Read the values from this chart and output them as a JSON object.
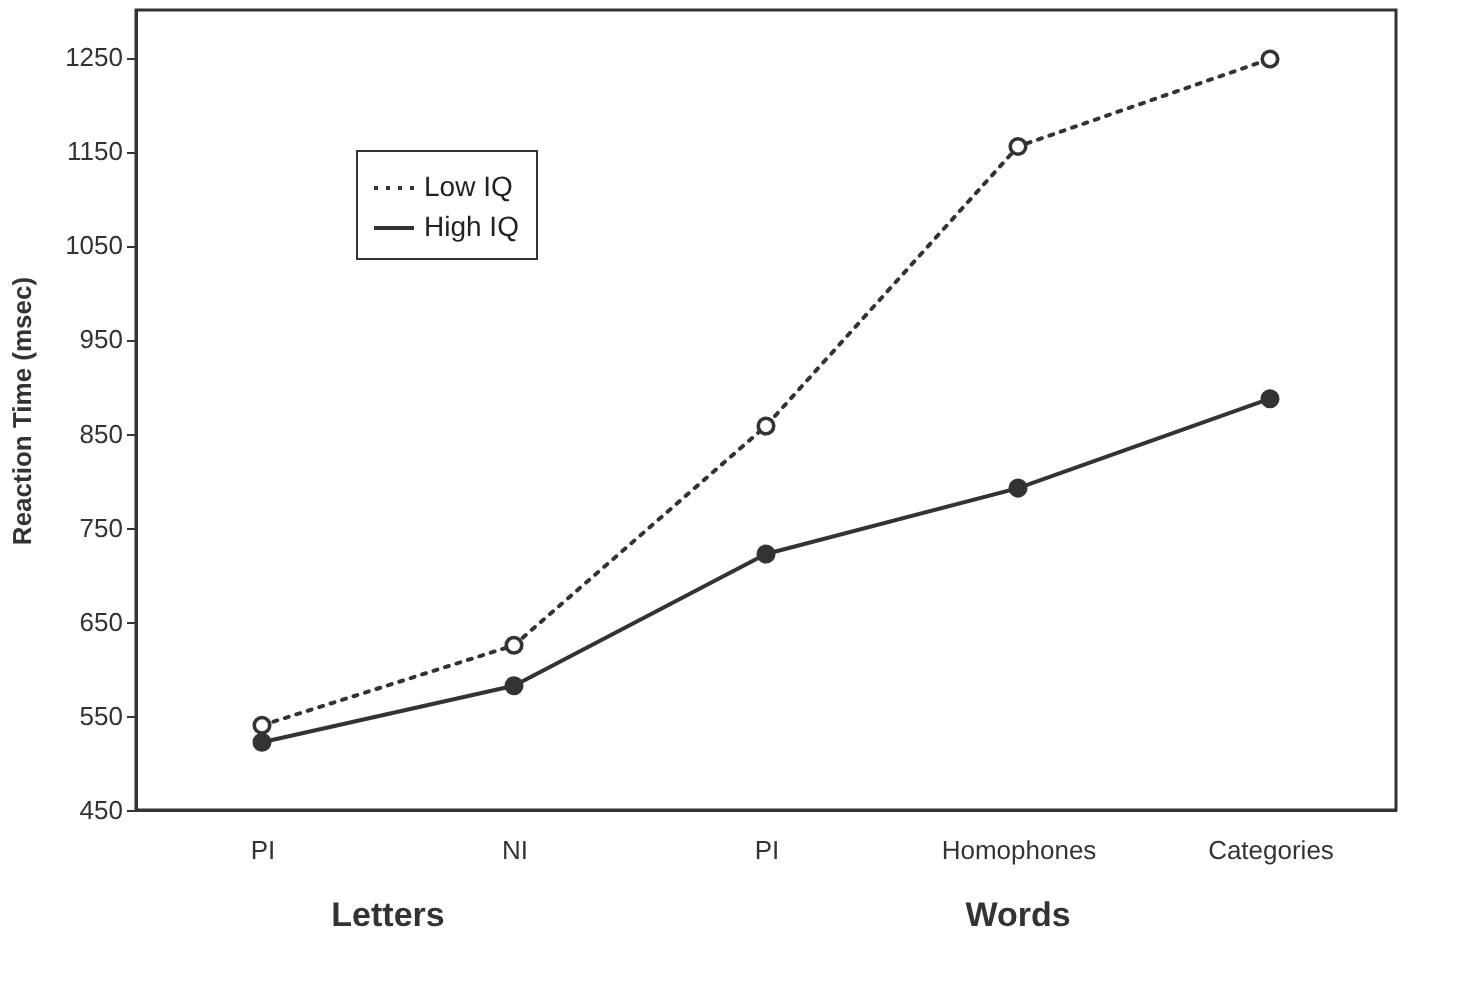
{
  "chart_data": {
    "type": "line",
    "ylabel": "Reaction Time (msec)",
    "categories": [
      "PI",
      "NI",
      "PI",
      "Homophones",
      "Categories"
    ],
    "series": [
      {
        "name": "Low IQ",
        "color": "#333333",
        "values": [
          540,
          625,
          858,
          1155,
          1248
        ],
        "line_style": "dotted"
      },
      {
        "name": "High IQ",
        "color": "#333333",
        "values": [
          522,
          582,
          722,
          792,
          887
        ],
        "line_style": "solid"
      }
    ],
    "ylim": [
      450,
      1300
    ],
    "yticks": [
      450,
      550,
      650,
      750,
      850,
      950,
      1050,
      1150,
      1250
    ],
    "annotations": [
      "Letters",
      "Words"
    ],
    "marker": "circle",
    "grid": false,
    "legend": "top left"
  }
}
